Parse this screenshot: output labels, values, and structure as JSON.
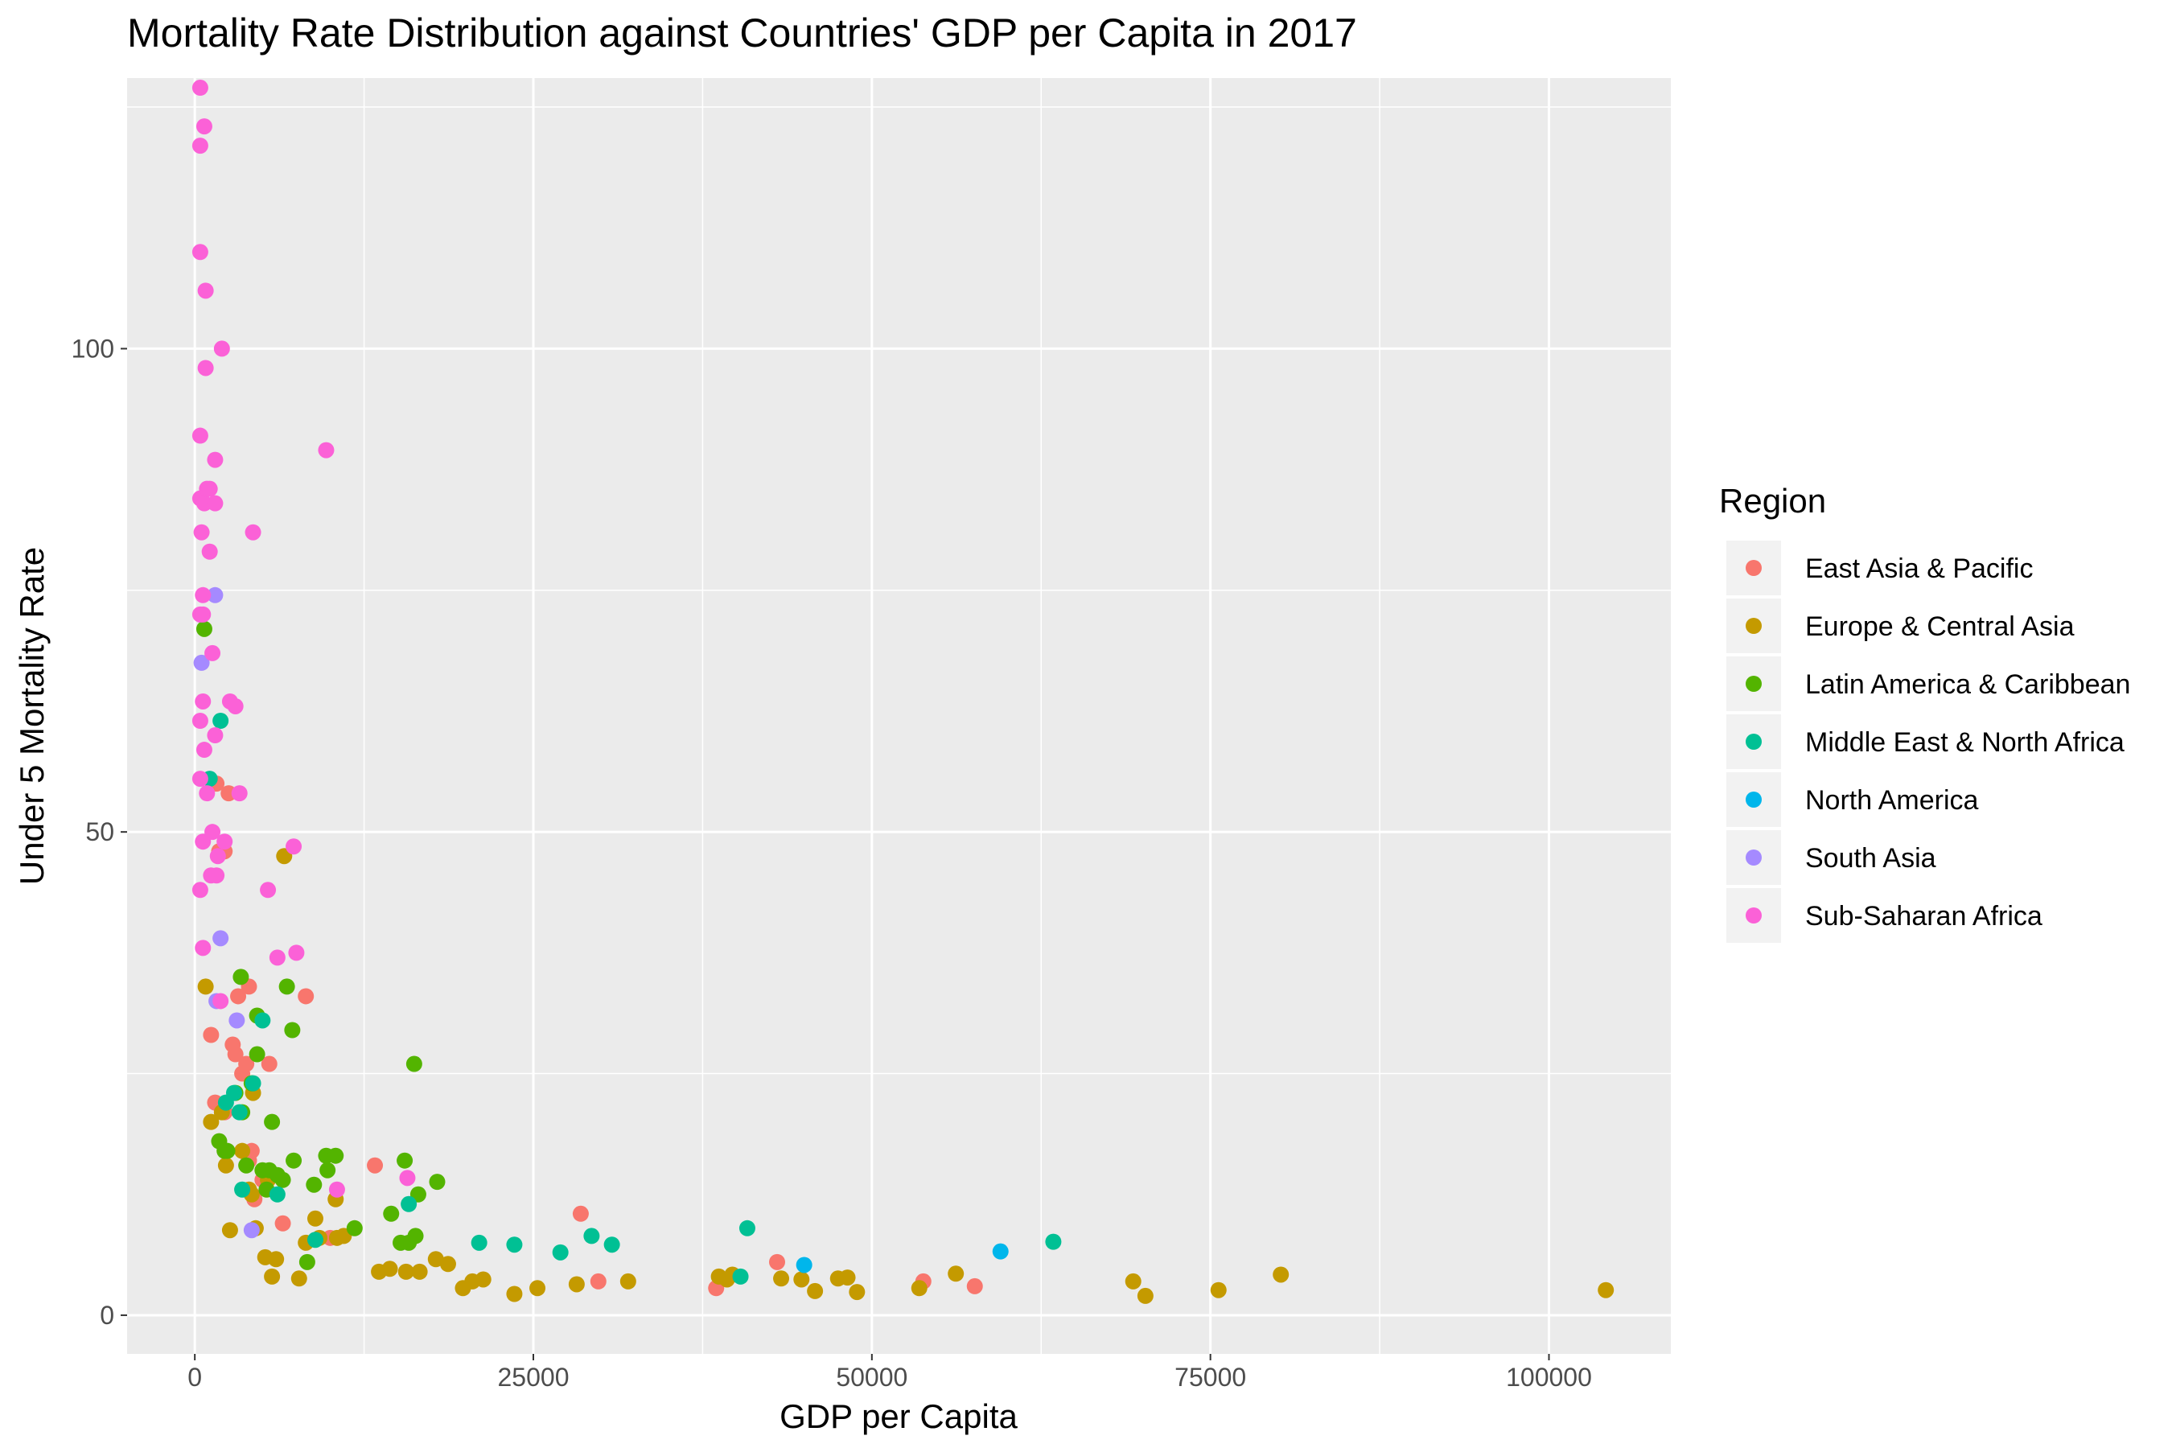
{
  "chart_data": {
    "type": "scatter",
    "title": "Mortality Rate Distribution against Countries' GDP per Capita in 2017",
    "xlabel": "GDP per Capita",
    "ylabel": "Under 5 Mortality Rate",
    "xlim": [
      -5000,
      109000
    ],
    "ylim": [
      -4,
      128
    ],
    "x_ticks": [
      0,
      25000,
      50000,
      75000,
      100000
    ],
    "x_tick_labels": [
      "0",
      "25000",
      "50000",
      "75000",
      "100000"
    ],
    "y_ticks": [
      0,
      50,
      100
    ],
    "y_tick_labels": [
      "0",
      "50",
      "100"
    ],
    "grid": true,
    "legend": {
      "title": "Region",
      "position": "right"
    },
    "series": [
      {
        "name": "East Asia & Pacific",
        "color": "#F8766D",
        "points": [
          [
            1200,
            29
          ],
          [
            1500,
            22
          ],
          [
            1600,
            55
          ],
          [
            1800,
            48
          ],
          [
            2200,
            48
          ],
          [
            2200,
            21
          ],
          [
            2500,
            54
          ],
          [
            2800,
            28
          ],
          [
            3000,
            27
          ],
          [
            3200,
            33
          ],
          [
            3500,
            25
          ],
          [
            3800,
            26
          ],
          [
            4000,
            34
          ],
          [
            4000,
            16
          ],
          [
            4200,
            17
          ],
          [
            4400,
            12
          ],
          [
            5000,
            14
          ],
          [
            5500,
            26
          ],
          [
            6500,
            9.5
          ],
          [
            8200,
            33
          ],
          [
            10000,
            8
          ],
          [
            13300,
            15.5
          ],
          [
            28500,
            10.5
          ],
          [
            29800,
            3.5
          ],
          [
            38500,
            2.8
          ],
          [
            43000,
            5.5
          ],
          [
            53800,
            3.5
          ],
          [
            57600,
            3
          ]
        ]
      },
      {
        "name": "Europe & Central Asia",
        "color": "#C49A00",
        "points": [
          [
            800,
            34
          ],
          [
            1200,
            20
          ],
          [
            2000,
            21
          ],
          [
            2300,
            15.5
          ],
          [
            2600,
            8.8
          ],
          [
            3500,
            17
          ],
          [
            4000,
            13
          ],
          [
            4200,
            12.5
          ],
          [
            4300,
            23
          ],
          [
            4500,
            9
          ],
          [
            5200,
            6
          ],
          [
            5400,
            14
          ],
          [
            5700,
            4
          ],
          [
            6000,
            5.8
          ],
          [
            6600,
            47.5
          ],
          [
            7700,
            3.8
          ],
          [
            8200,
            7.5
          ],
          [
            8900,
            10
          ],
          [
            9200,
            8
          ],
          [
            10400,
            12
          ],
          [
            10500,
            8
          ],
          [
            11000,
            8.2
          ],
          [
            13600,
            4.5
          ],
          [
            14400,
            4.8
          ],
          [
            15600,
            4.5
          ],
          [
            16600,
            4.5
          ],
          [
            17800,
            5.8
          ],
          [
            18700,
            5.3
          ],
          [
            19800,
            2.8
          ],
          [
            20500,
            3.5
          ],
          [
            21300,
            3.7
          ],
          [
            23600,
            2.2
          ],
          [
            25300,
            2.8
          ],
          [
            28200,
            3.2
          ],
          [
            32000,
            3.5
          ],
          [
            38700,
            4
          ],
          [
            39300,
            3.7
          ],
          [
            39700,
            4.2
          ],
          [
            43300,
            3.8
          ],
          [
            44800,
            3.7
          ],
          [
            45800,
            2.5
          ],
          [
            47500,
            3.8
          ],
          [
            48200,
            3.9
          ],
          [
            48900,
            2.4
          ],
          [
            53500,
            2.8
          ],
          [
            56200,
            4.3
          ],
          [
            69300,
            3.5
          ],
          [
            70200,
            2
          ],
          [
            75600,
            2.6
          ],
          [
            80200,
            4.2
          ],
          [
            104200,
            2.6
          ]
        ]
      },
      {
        "name": "Latin America & Caribbean",
        "color": "#53B400",
        "points": [
          [
            700,
            71
          ],
          [
            1800,
            18
          ],
          [
            2200,
            17
          ],
          [
            2400,
            17
          ],
          [
            3000,
            23
          ],
          [
            3400,
            35
          ],
          [
            3500,
            21
          ],
          [
            3800,
            15.5
          ],
          [
            4200,
            24
          ],
          [
            4600,
            31
          ],
          [
            4600,
            27
          ],
          [
            5000,
            15
          ],
          [
            5300,
            13
          ],
          [
            5500,
            15
          ],
          [
            5700,
            20
          ],
          [
            6100,
            14.5
          ],
          [
            6500,
            14
          ],
          [
            6800,
            34
          ],
          [
            7200,
            29.5
          ],
          [
            7300,
            16
          ],
          [
            8300,
            5.5
          ],
          [
            8800,
            13.5
          ],
          [
            9700,
            16.5
          ],
          [
            9800,
            15
          ],
          [
            10400,
            16.5
          ],
          [
            11800,
            9
          ],
          [
            14500,
            10.5
          ],
          [
            15200,
            7.5
          ],
          [
            15500,
            16
          ],
          [
            15800,
            7.5
          ],
          [
            16200,
            26
          ],
          [
            16300,
            8.2
          ],
          [
            16500,
            12.5
          ],
          [
            17900,
            13.8
          ]
        ]
      },
      {
        "name": "Middle East & North Africa",
        "color": "#00C094",
        "points": [
          [
            1100,
            55.5
          ],
          [
            1900,
            61.5
          ],
          [
            2300,
            22
          ],
          [
            2900,
            23
          ],
          [
            3300,
            21
          ],
          [
            3500,
            13
          ],
          [
            4300,
            24
          ],
          [
            5000,
            30.5
          ],
          [
            6100,
            12.5
          ],
          [
            8900,
            7.8
          ],
          [
            15800,
            11.5
          ],
          [
            21000,
            7.5
          ],
          [
            23600,
            7.3
          ],
          [
            27000,
            6.5
          ],
          [
            29300,
            8.2
          ],
          [
            30800,
            7.3
          ],
          [
            40300,
            4
          ],
          [
            40800,
            9
          ],
          [
            63400,
            7.6
          ]
        ]
      },
      {
        "name": "North America",
        "color": "#00B6EB",
        "points": [
          [
            45000,
            5.2
          ],
          [
            59500,
            6.6
          ]
        ]
      },
      {
        "name": "South Asia",
        "color": "#A58AFF",
        "points": [
          [
            500,
            67.5
          ],
          [
            1500,
            74.5
          ],
          [
            1600,
            32.5
          ],
          [
            1900,
            39
          ],
          [
            3100,
            30.5
          ],
          [
            4200,
            8.8
          ]
        ]
      },
      {
        "name": "Sub-Saharan Africa",
        "color": "#FB61D7",
        "points": [
          [
            400,
            127
          ],
          [
            400,
            121
          ],
          [
            400,
            110
          ],
          [
            400,
            91
          ],
          [
            400,
            84.5
          ],
          [
            400,
            72.5
          ],
          [
            400,
            61.5
          ],
          [
            400,
            55.5
          ],
          [
            400,
            44
          ],
          [
            500,
            81
          ],
          [
            600,
            74.5
          ],
          [
            600,
            72.5
          ],
          [
            600,
            63.5
          ],
          [
            600,
            49
          ],
          [
            600,
            38
          ],
          [
            700,
            123
          ],
          [
            700,
            84
          ],
          [
            700,
            58.5
          ],
          [
            800,
            106
          ],
          [
            800,
            98
          ],
          [
            900,
            85.5
          ],
          [
            900,
            54
          ],
          [
            1100,
            79
          ],
          [
            1100,
            85.5
          ],
          [
            1200,
            45.5
          ],
          [
            1300,
            50
          ],
          [
            1300,
            68.5
          ],
          [
            1500,
            88.5
          ],
          [
            1500,
            84
          ],
          [
            1500,
            60
          ],
          [
            1600,
            45.5
          ],
          [
            1700,
            47.5
          ],
          [
            1900,
            32.5
          ],
          [
            2000,
            100
          ],
          [
            2200,
            49
          ],
          [
            2600,
            63.5
          ],
          [
            3000,
            63
          ],
          [
            3300,
            54
          ],
          [
            4300,
            81
          ],
          [
            5400,
            44
          ],
          [
            6100,
            37
          ],
          [
            7300,
            48.5
          ],
          [
            7500,
            37.5
          ],
          [
            9700,
            89.5
          ],
          [
            10500,
            13
          ],
          [
            15700,
            14.2
          ]
        ]
      }
    ]
  }
}
